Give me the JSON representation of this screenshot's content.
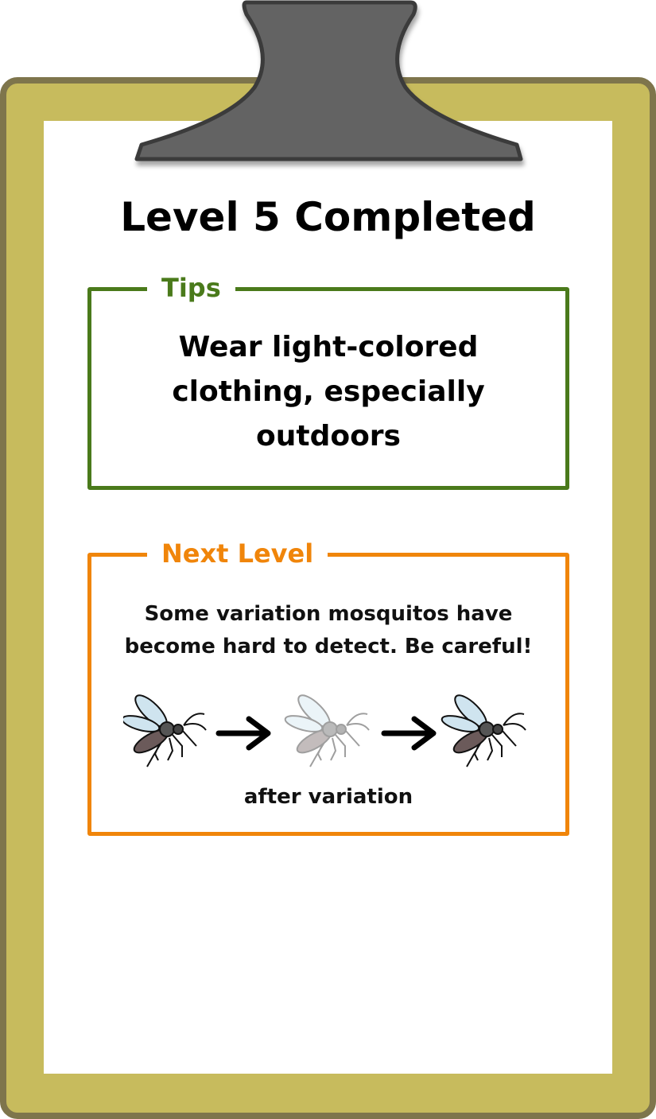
{
  "header": {
    "title": "Level 5 Completed"
  },
  "tips": {
    "legend": "Tips",
    "text": "Wear light-colored clothing, especially outdoors"
  },
  "next_level": {
    "legend": "Next Level",
    "description": "Some variation mosquitos have become hard to detect. Be careful!",
    "caption": "after variation",
    "sequence": [
      "mosquito-icon",
      "arrow-right-icon",
      "faded-mosquito-icon",
      "arrow-right-icon",
      "mosquito-icon"
    ]
  },
  "colors": {
    "board": "#c7bb5d",
    "board_border": "#7e754c",
    "clip": "#636363",
    "tips_accent": "#4a7a1b",
    "next_accent": "#f0850a"
  }
}
